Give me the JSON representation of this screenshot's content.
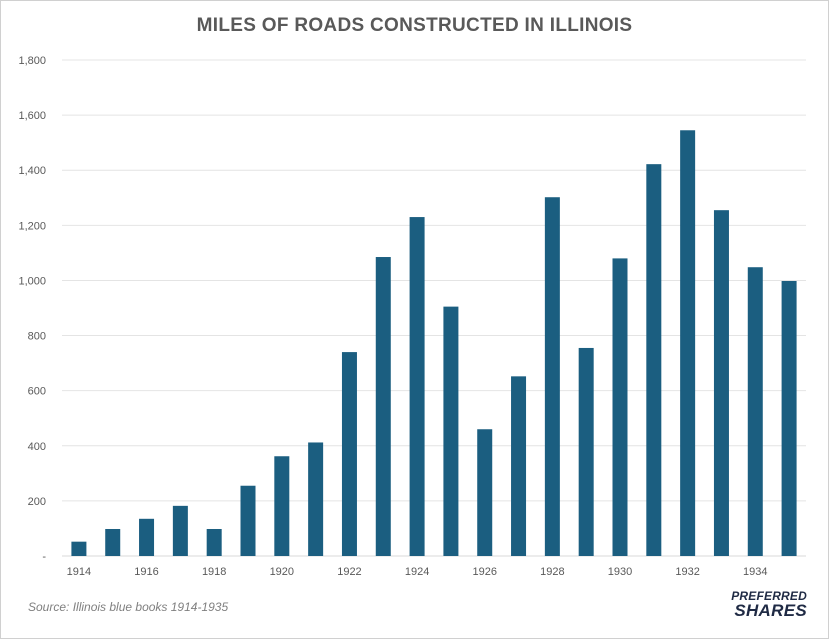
{
  "chart_data": {
    "type": "bar",
    "title": "MILES OF ROADS CONSTRUCTED IN ILLINOIS",
    "categories": [
      "1914",
      "1915",
      "1916",
      "1917",
      "1918",
      "1919",
      "1920",
      "1921",
      "1922",
      "1923",
      "1924",
      "1925",
      "1926",
      "1927",
      "1928",
      "1929",
      "1930",
      "1931",
      "1932",
      "1933",
      "1934",
      "1935"
    ],
    "x_tick_labels": [
      "1914",
      "",
      "1916",
      "",
      "1918",
      "",
      "1920",
      "",
      "1922",
      "",
      "1924",
      "",
      "1926",
      "",
      "1928",
      "",
      "1930",
      "",
      "1932",
      "",
      "1934",
      ""
    ],
    "values": [
      52,
      98,
      135,
      182,
      98,
      255,
      362,
      412,
      740,
      1085,
      1230,
      905,
      460,
      652,
      1302,
      755,
      1080,
      1422,
      1545,
      1255,
      1048,
      998
    ],
    "ylim": [
      0,
      1800
    ],
    "y_ticks": [
      0,
      200,
      400,
      600,
      800,
      1000,
      1200,
      1400,
      1600,
      1800
    ],
    "y_tick_labels": [
      "-",
      "200",
      "400",
      "600",
      "800",
      "1,000",
      "1,200",
      "1,400",
      "1,600",
      "1,800"
    ],
    "grid": true,
    "bar_color": "#1b5e80",
    "xlabel": "",
    "ylabel": ""
  },
  "footer": {
    "source": "Source: Illinois blue books 1914-1935",
    "logo_line1": "PREFERRED",
    "logo_line2": "SHARES"
  },
  "colors": {
    "grid": "#e4e4e4",
    "text": "#595959",
    "logo": "#1f2a44"
  }
}
